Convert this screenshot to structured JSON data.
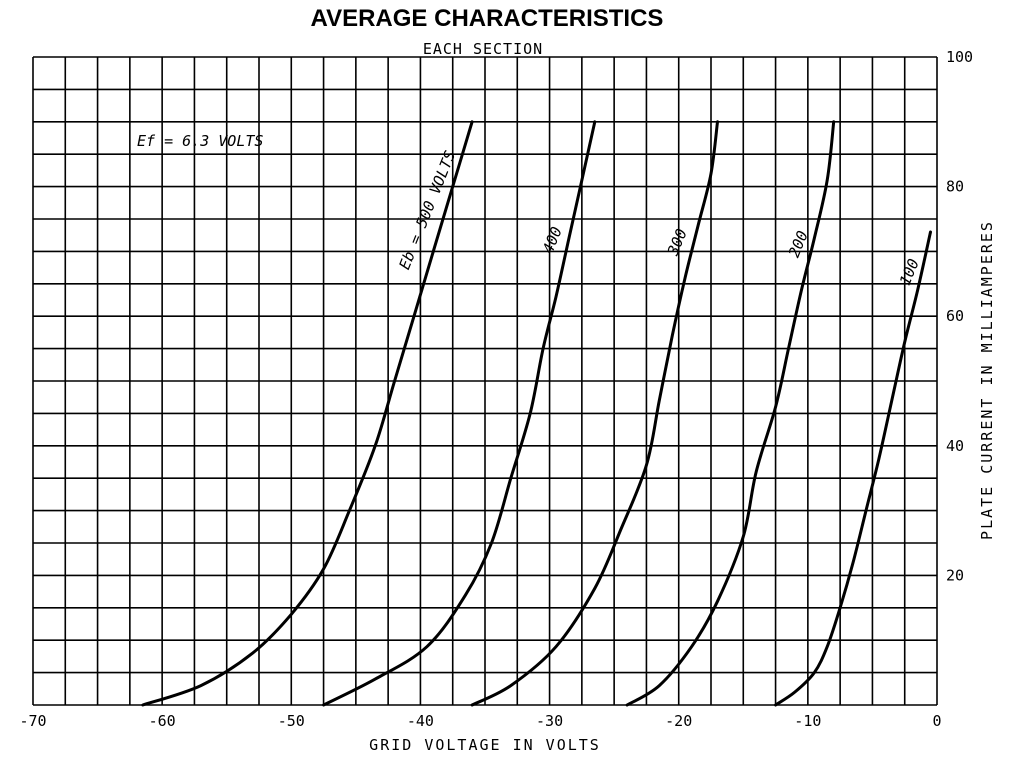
{
  "chart_data": {
    "type": "line",
    "title": "AVERAGE CHARACTERISTICS",
    "subtitle": "EACH SECTION",
    "xlabel": "GRID VOLTAGE IN VOLTS",
    "ylabel": "PLATE CURRENT IN MILLIAMPERES",
    "xlim": [
      -70,
      0
    ],
    "ylim": [
      0,
      100
    ],
    "x_ticks": [
      -70,
      -60,
      -50,
      -40,
      -30,
      -20,
      -10,
      0
    ],
    "x_tick_labels": [
      "-70",
      "-60",
      "-50",
      "-40",
      "-30",
      "-20",
      "-10",
      "0"
    ],
    "y_ticks": [
      20,
      40,
      60,
      80,
      100
    ],
    "y_tick_labels": [
      "20",
      "40",
      "60",
      "80",
      "100"
    ],
    "y_axis_side": "right",
    "grid": true,
    "x_grid_step": 2.5,
    "y_grid_step": 5,
    "annotations": {
      "filament": "Ef = 6.3 VOLTS",
      "series_prefix": "Eb =",
      "series_suffix": "VOLTS"
    },
    "series": [
      {
        "name": "500",
        "x": [
          -61.5,
          -57,
          -53,
          -50,
          -47.5,
          -45.5,
          -43.5,
          -42,
          -40.5,
          -39,
          -37.5,
          -36
        ],
        "y": [
          0,
          3,
          8,
          14,
          21,
          30,
          40,
          50,
          60,
          70,
          80,
          90
        ]
      },
      {
        "name": "400",
        "x": [
          -47.5,
          -43.5,
          -39.5,
          -36.5,
          -34.5,
          -33,
          -31.5,
          -30.5,
          -29.5,
          -28.5,
          -27.5,
          -26.5
        ],
        "y": [
          0,
          4,
          9,
          17,
          25,
          35,
          45,
          55,
          63,
          72,
          81,
          90
        ]
      },
      {
        "name": "300",
        "x": [
          -36,
          -33,
          -29.5,
          -26.5,
          -24.5,
          -22.5,
          -21.5,
          -20.5,
          -19.5,
          -18.5,
          -17.5,
          -17
        ],
        "y": [
          0,
          3,
          9,
          18,
          27,
          37,
          47,
          57,
          66,
          74,
          82,
          90
        ]
      },
      {
        "name": "200",
        "x": [
          -24,
          -21.5,
          -19,
          -17,
          -15,
          -14,
          -12.5,
          -11.5,
          -10.5,
          -9.5,
          -8.5,
          -8
        ],
        "y": [
          0,
          3,
          9,
          16,
          26,
          36,
          46,
          55,
          64,
          72,
          81,
          90
        ]
      },
      {
        "name": "100",
        "x": [
          -12.5,
          -11,
          -9.5,
          -8.5,
          -7.5,
          -6.5,
          -5.5,
          -4.5,
          -3.5,
          -2.5,
          -1.5,
          -0.5
        ],
        "y": [
          0,
          2,
          5,
          9,
          15,
          22,
          30,
          38,
          47,
          56,
          64,
          73
        ]
      }
    ]
  }
}
